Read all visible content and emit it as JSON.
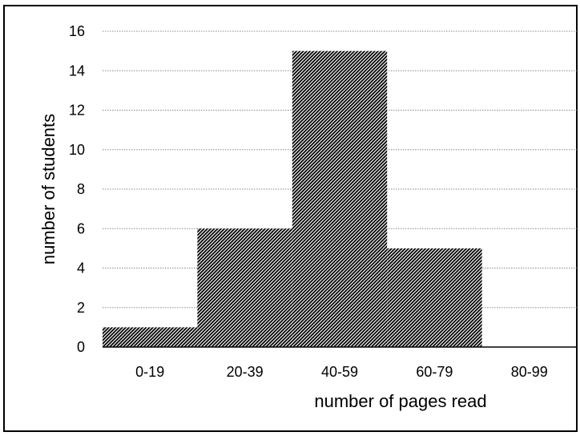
{
  "chart_data": {
    "type": "bar",
    "subtype": "histogram",
    "categories": [
      "0-19",
      "20-39",
      "40-59",
      "60-79",
      "80-99"
    ],
    "values": [
      1,
      6,
      15,
      5,
      0
    ],
    "title": "",
    "xlabel": "number of pages read",
    "ylabel": "number of students",
    "ylim": [
      0,
      16
    ],
    "yticks": [
      "0",
      "2",
      "4",
      "6",
      "8",
      "10",
      "12",
      "14",
      "16"
    ],
    "grid": true,
    "grid_style": "dotted",
    "bar_fill": "hatched",
    "colors": {
      "bar_fill": "#000000",
      "bar_hatch_bg": "#ffffff",
      "grid": "#8a8a8a",
      "axis": "#000000"
    }
  }
}
